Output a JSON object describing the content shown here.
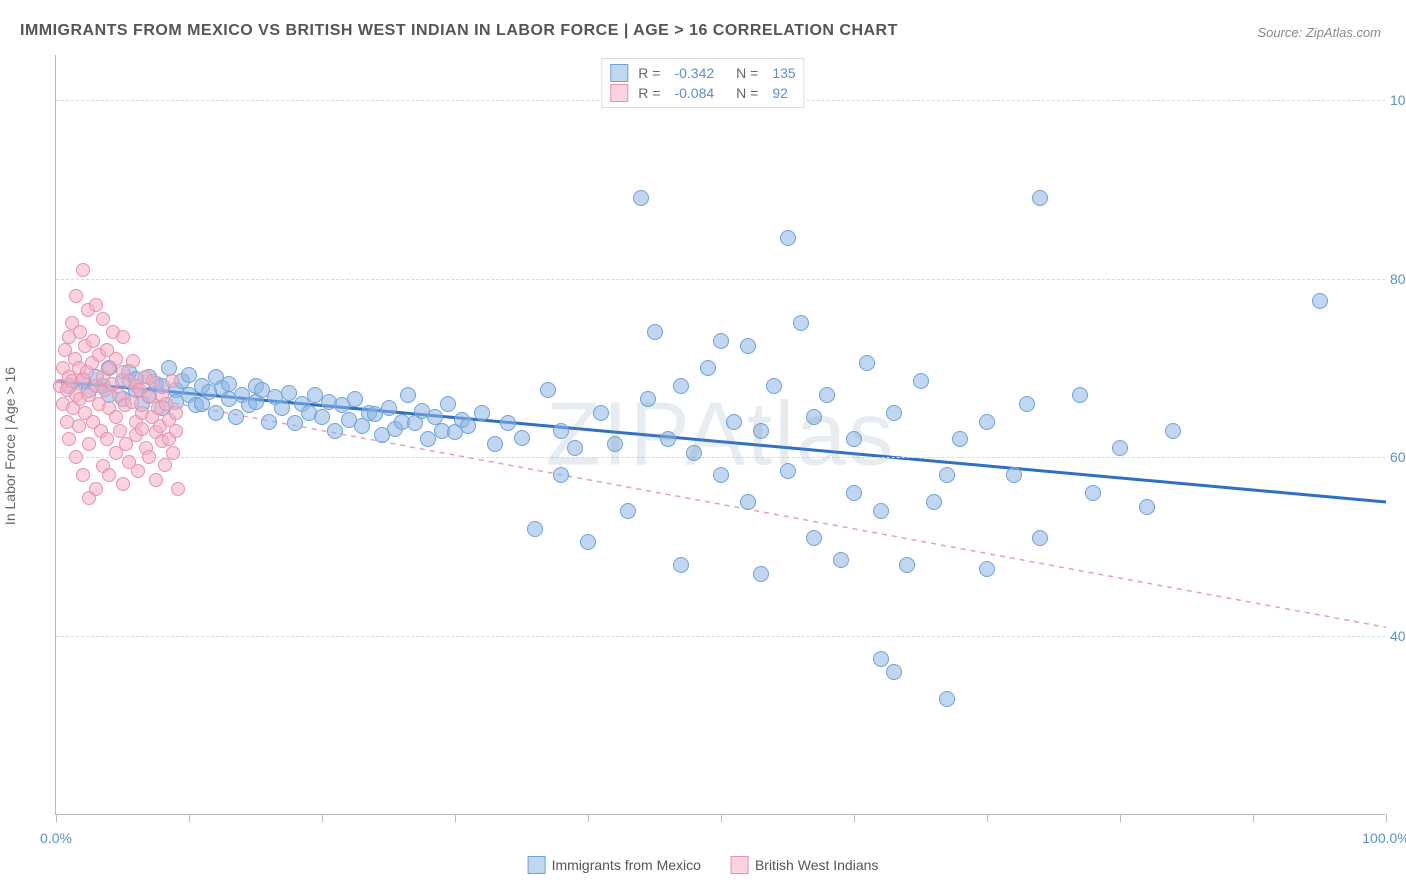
{
  "title": "IMMIGRANTS FROM MEXICO VS BRITISH WEST INDIAN IN LABOR FORCE | AGE > 16 CORRELATION CHART",
  "source": "Source: ZipAtlas.com",
  "watermark": "ZIPAtlas",
  "y_axis_label": "In Labor Force | Age > 16",
  "chart": {
    "type": "scatter",
    "xlim": [
      0,
      100
    ],
    "ylim": [
      20,
      105
    ],
    "y_gridlines": [
      40,
      60,
      80,
      100
    ],
    "y_tick_labels": [
      "40.0%",
      "60.0%",
      "80.0%",
      "100.0%"
    ],
    "x_ticks": [
      0,
      10,
      20,
      30,
      40,
      50,
      60,
      70,
      80,
      90,
      100
    ],
    "x_tick_labels": {
      "0": "0.0%",
      "100": "100.0%"
    },
    "background_color": "#ffffff",
    "grid_color": "#d8d8d8",
    "axis_color": "#bbbbbb",
    "series": [
      {
        "name": "mexico",
        "label": "Immigrants from Mexico",
        "fill_color": "rgba(140,180,230,0.55)",
        "stroke_color": "#6fa3d8",
        "marker_radius": 8,
        "R": "-0.342",
        "N": "135",
        "trend": {
          "x1": 0,
          "y1": 68.5,
          "x2": 100,
          "y2": 55,
          "stroke": "#2f6fc4",
          "width": 3,
          "dash": "none"
        },
        "points": [
          [
            1,
            68
          ],
          [
            2,
            68.5
          ],
          [
            2.5,
            67.5
          ],
          [
            3,
            69
          ],
          [
            3.5,
            68
          ],
          [
            4,
            67
          ],
          [
            4,
            70
          ],
          [
            5,
            68.5
          ],
          [
            5,
            66.5
          ],
          [
            5.5,
            69.5
          ],
          [
            6,
            67.5
          ],
          [
            6,
            68.8
          ],
          [
            6.5,
            66
          ],
          [
            7,
            69
          ],
          [
            7,
            67
          ],
          [
            7.5,
            68.2
          ],
          [
            8,
            65.5
          ],
          [
            8,
            68
          ],
          [
            8.5,
            70
          ],
          [
            9,
            67.5
          ],
          [
            9,
            66.2
          ],
          [
            9.5,
            68.5
          ],
          [
            10,
            67
          ],
          [
            10,
            69.2
          ],
          [
            10.5,
            65.8
          ],
          [
            11,
            68
          ],
          [
            11,
            66
          ],
          [
            11.5,
            67.3
          ],
          [
            12,
            69
          ],
          [
            12,
            65
          ],
          [
            12.5,
            67.8
          ],
          [
            13,
            66.5
          ],
          [
            13,
            68.2
          ],
          [
            13.5,
            64.5
          ],
          [
            14,
            67
          ],
          [
            14.5,
            65.8
          ],
          [
            15,
            68
          ],
          [
            15,
            66.2
          ],
          [
            15.5,
            67.5
          ],
          [
            16,
            64
          ],
          [
            16.5,
            66.8
          ],
          [
            17,
            65.5
          ],
          [
            17.5,
            67.2
          ],
          [
            18,
            63.8
          ],
          [
            18.5,
            66
          ],
          [
            19,
            65
          ],
          [
            19.5,
            67
          ],
          [
            20,
            64.5
          ],
          [
            20.5,
            66.2
          ],
          [
            21,
            63
          ],
          [
            21.5,
            65.8
          ],
          [
            22,
            64.2
          ],
          [
            22.5,
            66.5
          ],
          [
            23,
            63.5
          ],
          [
            23.5,
            65
          ],
          [
            24,
            64.8
          ],
          [
            24.5,
            62.5
          ],
          [
            25,
            65.5
          ],
          [
            25.5,
            63.2
          ],
          [
            26,
            64
          ],
          [
            26.5,
            67
          ],
          [
            27,
            63.8
          ],
          [
            27.5,
            65.2
          ],
          [
            28,
            62
          ],
          [
            28.5,
            64.5
          ],
          [
            29,
            63
          ],
          [
            29.5,
            66
          ],
          [
            30,
            62.8
          ],
          [
            30.5,
            64.2
          ],
          [
            31,
            63.5
          ],
          [
            32,
            65
          ],
          [
            33,
            61.5
          ],
          [
            34,
            63.8
          ],
          [
            35,
            62.2
          ],
          [
            36,
            52
          ],
          [
            37,
            67.5
          ],
          [
            38,
            63
          ],
          [
            38,
            58
          ],
          [
            39,
            61
          ],
          [
            40,
            50.5
          ],
          [
            41,
            65
          ],
          [
            42,
            61.5
          ],
          [
            43,
            54
          ],
          [
            44,
            89
          ],
          [
            44.5,
            66.5
          ],
          [
            45,
            74
          ],
          [
            46,
            62
          ],
          [
            47,
            68
          ],
          [
            47,
            48
          ],
          [
            48,
            60.5
          ],
          [
            49,
            70
          ],
          [
            50,
            58
          ],
          [
            50,
            73
          ],
          [
            51,
            64
          ],
          [
            52,
            55
          ],
          [
            52,
            72.5
          ],
          [
            53,
            63
          ],
          [
            53,
            47
          ],
          [
            54,
            68
          ],
          [
            55,
            84.5
          ],
          [
            55,
            58.5
          ],
          [
            56,
            75
          ],
          [
            57,
            51
          ],
          [
            57,
            64.5
          ],
          [
            58,
            67
          ],
          [
            59,
            48.5
          ],
          [
            60,
            62
          ],
          [
            60,
            56
          ],
          [
            61,
            70.5
          ],
          [
            62,
            54
          ],
          [
            62,
            37.5
          ],
          [
            63,
            65
          ],
          [
            63,
            36
          ],
          [
            64,
            48
          ],
          [
            65,
            68.5
          ],
          [
            66,
            55
          ],
          [
            67,
            33
          ],
          [
            67,
            58
          ],
          [
            68,
            62
          ],
          [
            70,
            47.5
          ],
          [
            70,
            64
          ],
          [
            72,
            58
          ],
          [
            73,
            66
          ],
          [
            74,
            89
          ],
          [
            74,
            51
          ],
          [
            77,
            67
          ],
          [
            78,
            56
          ],
          [
            80,
            61
          ],
          [
            82,
            54.5
          ],
          [
            84,
            63
          ],
          [
            95,
            77.5
          ]
        ]
      },
      {
        "name": "bwi",
        "label": "British West Indians",
        "fill_color": "rgba(245,175,195,0.55)",
        "stroke_color": "#e893ae",
        "marker_radius": 7,
        "R": "-0.084",
        "N": "92",
        "trend": {
          "x1": 0,
          "y1": 68.5,
          "x2": 100,
          "y2": 41,
          "stroke": "#e8a0b5",
          "width": 1.5,
          "dash": "5,5"
        },
        "points": [
          [
            0.3,
            68
          ],
          [
            0.5,
            70
          ],
          [
            0.5,
            66
          ],
          [
            0.7,
            72
          ],
          [
            0.8,
            67.5
          ],
          [
            0.8,
            64
          ],
          [
            1,
            69
          ],
          [
            1,
            73.5
          ],
          [
            1,
            62
          ],
          [
            1.2,
            68.5
          ],
          [
            1.2,
            75
          ],
          [
            1.3,
            65.5
          ],
          [
            1.4,
            71
          ],
          [
            1.5,
            67
          ],
          [
            1.5,
            78
          ],
          [
            1.5,
            60
          ],
          [
            1.7,
            70
          ],
          [
            1.7,
            63.5
          ],
          [
            1.8,
            74
          ],
          [
            1.8,
            66.5
          ],
          [
            2,
            68.8
          ],
          [
            2,
            81
          ],
          [
            2,
            58
          ],
          [
            2.2,
            72.5
          ],
          [
            2.2,
            65
          ],
          [
            2.3,
            69.5
          ],
          [
            2.4,
            76.5
          ],
          [
            2.5,
            67
          ],
          [
            2.5,
            61.5
          ],
          [
            2.5,
            55.5
          ],
          [
            2.7,
            70.5
          ],
          [
            2.8,
            64
          ],
          [
            2.8,
            73
          ],
          [
            3,
            68
          ],
          [
            3,
            56.5
          ],
          [
            3,
            77
          ],
          [
            3.2,
            66
          ],
          [
            3.2,
            71.5
          ],
          [
            3.4,
            63
          ],
          [
            3.5,
            69
          ],
          [
            3.5,
            59
          ],
          [
            3.5,
            75.5
          ],
          [
            3.7,
            67.5
          ],
          [
            3.8,
            62
          ],
          [
            3.8,
            72
          ],
          [
            4,
            65.5
          ],
          [
            4,
            70
          ],
          [
            4,
            58
          ],
          [
            4.2,
            68.2
          ],
          [
            4.3,
            74
          ],
          [
            4.5,
            64.5
          ],
          [
            4.5,
            60.5
          ],
          [
            4.5,
            71
          ],
          [
            4.7,
            67
          ],
          [
            4.8,
            63
          ],
          [
            5,
            69.5
          ],
          [
            5,
            57
          ],
          [
            5,
            73.5
          ],
          [
            5.2,
            65.8
          ],
          [
            5.3,
            61.5
          ],
          [
            5.5,
            68.5
          ],
          [
            5.5,
            59.5
          ],
          [
            5.7,
            66.2
          ],
          [
            5.8,
            70.8
          ],
          [
            6,
            64
          ],
          [
            6,
            62.5
          ],
          [
            6,
            68
          ],
          [
            6.2,
            58.5
          ],
          [
            6.3,
            67.5
          ],
          [
            6.5,
            65
          ],
          [
            6.5,
            63.2
          ],
          [
            6.7,
            69
          ],
          [
            6.8,
            61
          ],
          [
            7,
            66.8
          ],
          [
            7,
            60
          ],
          [
            7.2,
            64.5
          ],
          [
            7.3,
            68.5
          ],
          [
            7.5,
            62.8
          ],
          [
            7.5,
            57.5
          ],
          [
            7.7,
            65.5
          ],
          [
            7.8,
            63.5
          ],
          [
            8,
            67
          ],
          [
            8,
            61.8
          ],
          [
            8.2,
            59.2
          ],
          [
            8.3,
            66
          ],
          [
            8.5,
            64.2
          ],
          [
            8.5,
            62
          ],
          [
            8.7,
            68.5
          ],
          [
            8.8,
            60.5
          ],
          [
            9,
            65
          ],
          [
            9,
            63
          ],
          [
            9.2,
            56.5
          ]
        ]
      }
    ]
  },
  "legend_top": {
    "r_label": "R =",
    "n_label": "N ="
  }
}
